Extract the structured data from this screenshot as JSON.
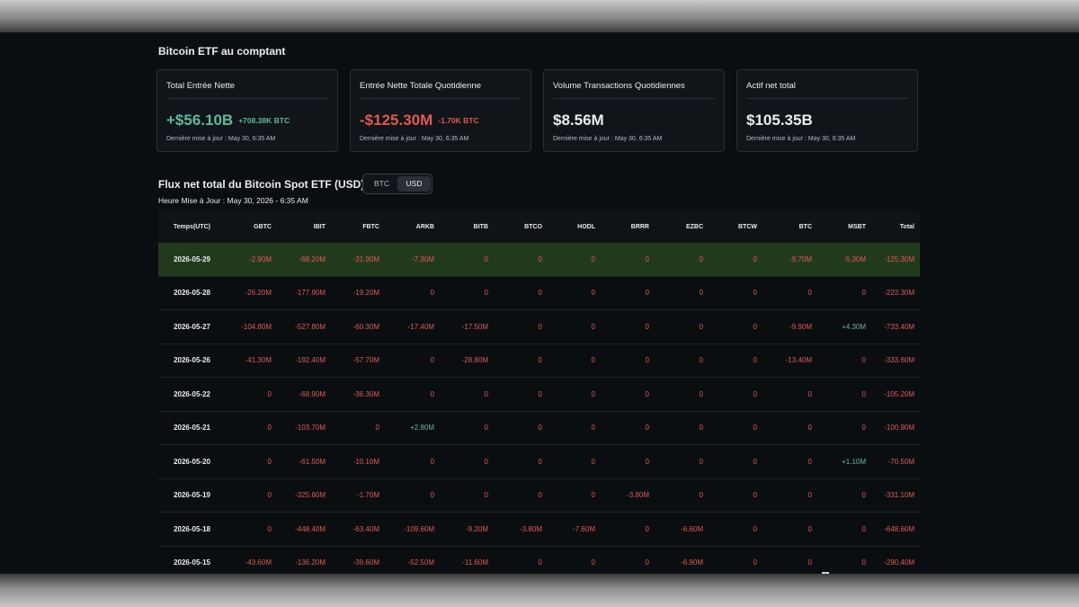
{
  "section_title": "Bitcoin ETF au comptant",
  "cards": [
    {
      "title": "Total Entrée Nette",
      "value": "+$56.10B",
      "value_tone": "pos",
      "sub": "+708.38K BTC",
      "sub_tone": "pos",
      "updated": "Dernière mise à jour : May 30, 6:35 AM"
    },
    {
      "title": "Entrée Nette Totale Quotidienne",
      "value": "-$125.30M",
      "value_tone": "neg",
      "sub": "-1.70K BTC",
      "sub_tone": "neg",
      "updated": "Dernière mise à jour : May 30, 6:35 AM"
    },
    {
      "title": "Volume Transactions Quotidiennes",
      "value": "$8.56M",
      "value_tone": "white",
      "sub": "",
      "sub_tone": "white",
      "updated": "Dernière mise à jour : May 30, 6:35 AM"
    },
    {
      "title": "Actif net total",
      "value": "$105.35B",
      "value_tone": "white",
      "sub": "",
      "sub_tone": "white",
      "updated": "Dernière mise à jour : May 30, 6:35 AM"
    }
  ],
  "flux": {
    "title": "Flux net total du Bitcoin Spot ETF (USD)",
    "toggle": {
      "btc": "BTC",
      "usd": "USD",
      "selected": "USD"
    },
    "updated": "Heure Mise à Jour : May 30, 2026 - 6:35 AM"
  },
  "colors": {
    "positive": "#5fb99a",
    "negative": "#e05a56",
    "highlight_row": "#223a1c"
  },
  "table": {
    "columns": [
      "Temps(UTC)",
      "GBTC",
      "IBIT",
      "FBTC",
      "ARKB",
      "BITB",
      "BTCO",
      "HODL",
      "BRRR",
      "EZBC",
      "BTCW",
      "BTC",
      "MSBT",
      "Total"
    ],
    "rows": [
      [
        "2026-05-29",
        "-2.90M",
        "-68.20M",
        "-31.90M",
        "-7.30M",
        "0",
        "0",
        "0",
        "0",
        "0",
        "0",
        "-9.70M",
        "-5.30M",
        "-125.30M"
      ],
      [
        "2026-05-28",
        "-26.20M",
        "-177.90M",
        "-19.20M",
        "0",
        "0",
        "0",
        "0",
        "0",
        "0",
        "0",
        "0",
        "0",
        "-223.30M"
      ],
      [
        "2026-05-27",
        "-104.80M",
        "-527.80M",
        "-60.30M",
        "-17.40M",
        "-17.50M",
        "0",
        "0",
        "0",
        "0",
        "0",
        "-9.90M",
        "+4.30M",
        "-733.40M"
      ],
      [
        "2026-05-26",
        "-41.30M",
        "-192.40M",
        "-57.70M",
        "0",
        "-28.80M",
        "0",
        "0",
        "0",
        "0",
        "0",
        "-13.40M",
        "0",
        "-333.60M"
      ],
      [
        "2026-05-22",
        "0",
        "-68.90M",
        "-36.30M",
        "0",
        "0",
        "0",
        "0",
        "0",
        "0",
        "0",
        "0",
        "0",
        "-105.20M"
      ],
      [
        "2026-05-21",
        "0",
        "-103.70M",
        "0",
        "+2.80M",
        "0",
        "0",
        "0",
        "0",
        "0",
        "0",
        "0",
        "0",
        "-100.90M"
      ],
      [
        "2026-05-20",
        "0",
        "-61.50M",
        "-10.10M",
        "0",
        "0",
        "0",
        "0",
        "0",
        "0",
        "0",
        "0",
        "+1.10M",
        "-70.50M"
      ],
      [
        "2026-05-19",
        "0",
        "-325.60M",
        "-1.70M",
        "0",
        "0",
        "0",
        "0",
        "-3.80M",
        "0",
        "0",
        "0",
        "0",
        "-331.10M"
      ],
      [
        "2026-05-18",
        "0",
        "-448.40M",
        "-63.40M",
        "-109.60M",
        "-9.20M",
        "-3.80M",
        "-7.60M",
        "0",
        "-6.60M",
        "0",
        "0",
        "0",
        "-648.60M"
      ],
      [
        "2026-05-15",
        "-43.60M",
        "-136.20M",
        "-39.60M",
        "-52.50M",
        "-11.60M",
        "0",
        "0",
        "0",
        "-6.90M",
        "0",
        "0",
        "0",
        "-290.40M"
      ]
    ]
  }
}
